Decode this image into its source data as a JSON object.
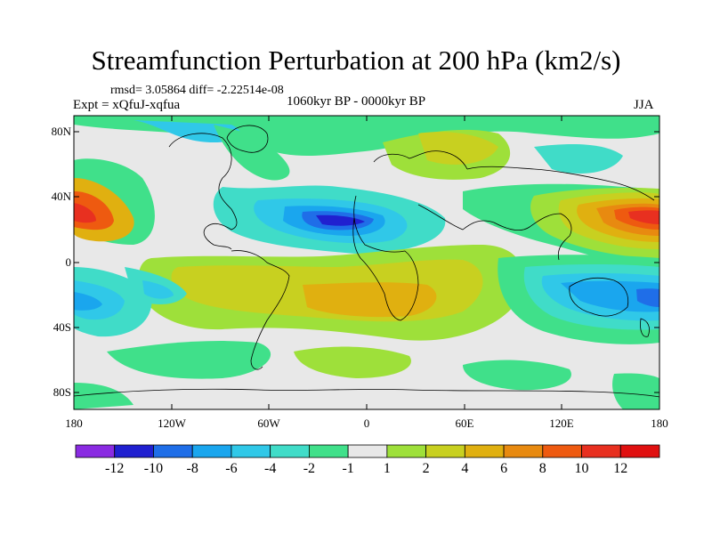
{
  "title": "Streamfunction Perturbation at 200 hPa (km2/s)",
  "stats": "rmsd= 3.05864 diff= -2.22514e-08",
  "experiment": "Expt = xQfuJ-xqfua",
  "period": "1060kyr BP - 0000kyr BP",
  "season": "JJA",
  "map": {
    "projection": "cylindrical equidistant",
    "lon_range": [
      -180,
      180
    ],
    "lat_range": [
      -90,
      90
    ],
    "lat_ticks": [
      "80N",
      "40N",
      "0",
      "40S",
      "80S"
    ],
    "lon_ticks": [
      "180",
      "120W",
      "60W",
      "0",
      "60E",
      "120E",
      "180"
    ]
  },
  "colorbar": {
    "labels": [
      "-12",
      "-10",
      "-8",
      "-6",
      "-4",
      "-2",
      "-1",
      "1",
      "2",
      "4",
      "6",
      "8",
      "10",
      "12"
    ],
    "colors": [
      "#8a2be2",
      "#2020d0",
      "#1f6ee8",
      "#1aa6ee",
      "#30c8e8",
      "#40dcc8",
      "#40e08a",
      "#e8e8e8",
      "#9ee03a",
      "#c8d020",
      "#e0b010",
      "#e88a10",
      "#ee5a10",
      "#e83020",
      "#e01010"
    ]
  }
}
